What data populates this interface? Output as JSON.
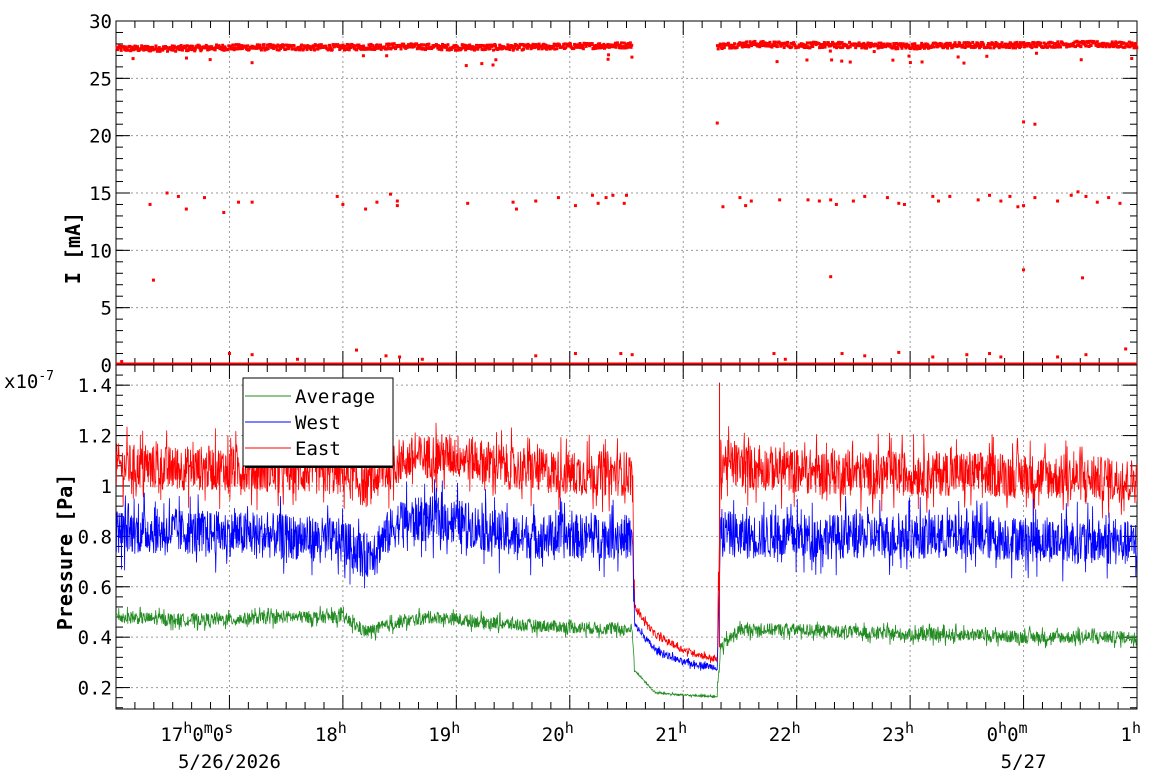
{
  "chart_data": [
    {
      "id": "current",
      "type": "scatter",
      "ylabel": "I [mA]",
      "ylim": [
        0,
        30
      ],
      "yticks": [
        "0",
        "5",
        "10",
        "15",
        "20",
        "25",
        "30"
      ],
      "grid": true,
      "series": [
        {
          "color": "#ff0000",
          "baseline_points": [
            [
              16.0,
              27.6
            ],
            [
              16.5,
              27.6
            ],
            [
              17.0,
              27.7
            ],
            [
              17.5,
              27.7
            ],
            [
              18.0,
              27.7
            ],
            [
              18.5,
              27.8
            ],
            [
              19.0,
              27.7
            ],
            [
              19.5,
              27.7
            ],
            [
              20.0,
              27.8
            ],
            [
              20.55,
              27.9
            ],
            [
              21.3,
              27.8
            ],
            [
              21.6,
              28.0
            ],
            [
              22.0,
              27.9
            ],
            [
              22.5,
              27.9
            ],
            [
              23.0,
              27.8
            ],
            [
              23.5,
              27.9
            ],
            [
              24.0,
              27.9
            ],
            [
              24.5,
              28.0
            ],
            [
              25.0,
              27.9
            ]
          ],
          "gap": [
            20.55,
            21.3
          ],
          "outliers": [
            [
              16.05,
              0.3
            ],
            [
              16.3,
              14.0
            ],
            [
              16.33,
              7.4
            ],
            [
              16.45,
              15.0
            ],
            [
              16.55,
              14.7
            ],
            [
              16.62,
              13.6
            ],
            [
              16.78,
              14.6
            ],
            [
              16.95,
              13.3
            ],
            [
              17.08,
              14.2
            ],
            [
              17.2,
              14.2
            ],
            [
              17.0,
              1.0
            ],
            [
              17.2,
              0.9
            ],
            [
              17.6,
              0.5
            ],
            [
              17.95,
              14.7
            ],
            [
              18.0,
              14.0
            ],
            [
              18.2,
              13.6
            ],
            [
              18.3,
              14.2
            ],
            [
              18.42,
              14.9
            ],
            [
              18.48,
              14.3
            ],
            [
              18.48,
              13.9
            ],
            [
              18.12,
              1.3
            ],
            [
              18.38,
              0.8
            ],
            [
              18.5,
              0.7
            ],
            [
              18.7,
              0.5
            ],
            [
              19.1,
              14.1
            ],
            [
              19.5,
              14.2
            ],
            [
              19.53,
              13.6
            ],
            [
              19.7,
              14.3
            ],
            [
              19.9,
              14.6
            ],
            [
              20.05,
              13.9
            ],
            [
              20.2,
              14.8
            ],
            [
              20.25,
              14.1
            ],
            [
              20.32,
              14.6
            ],
            [
              20.38,
              14.8
            ],
            [
              20.5,
              14.8
            ],
            [
              20.48,
              14.1
            ],
            [
              19.7,
              0.8
            ],
            [
              20.05,
              1.0
            ],
            [
              20.45,
              1.0
            ],
            [
              20.55,
              0.9
            ],
            [
              21.3,
              21.1
            ],
            [
              21.35,
              13.8
            ],
            [
              21.5,
              14.6
            ],
            [
              21.55,
              13.9
            ],
            [
              21.6,
              14.3
            ],
            [
              21.85,
              14.4
            ],
            [
              22.1,
              14.4
            ],
            [
              22.2,
              14.3
            ],
            [
              22.3,
              14.4
            ],
            [
              22.35,
              14.0
            ],
            [
              22.5,
              14.3
            ],
            [
              22.6,
              14.7
            ],
            [
              22.8,
              14.6
            ],
            [
              22.9,
              14.1
            ],
            [
              22.95,
              14.0
            ],
            [
              23.2,
              14.7
            ],
            [
              23.25,
              14.3
            ],
            [
              23.35,
              14.7
            ],
            [
              23.6,
              14.4
            ],
            [
              23.7,
              14.8
            ],
            [
              23.8,
              14.3
            ],
            [
              23.88,
              14.7
            ],
            [
              23.95,
              13.8
            ],
            [
              24.0,
              13.9
            ],
            [
              24.1,
              14.6
            ],
            [
              24.3,
              14.3
            ],
            [
              24.42,
              14.8
            ],
            [
              24.48,
              15.1
            ],
            [
              24.55,
              14.7
            ],
            [
              24.65,
              14.2
            ],
            [
              24.75,
              14.6
            ],
            [
              24.85,
              14.1
            ],
            [
              22.3,
              7.7
            ],
            [
              24.0,
              8.3
            ],
            [
              24.52,
              7.6
            ],
            [
              24.0,
              21.2
            ],
            [
              24.1,
              21.0
            ],
            [
              21.8,
              1.0
            ],
            [
              21.9,
              0.5
            ],
            [
              22.4,
              1.0
            ],
            [
              22.6,
              0.8
            ],
            [
              22.9,
              1.1
            ],
            [
              23.2,
              0.7
            ],
            [
              23.5,
              0.9
            ],
            [
              23.7,
              1.0
            ],
            [
              23.8,
              0.7
            ],
            [
              24.3,
              0.7
            ],
            [
              24.55,
              0.9
            ],
            [
              24.9,
              1.4
            ]
          ]
        }
      ]
    },
    {
      "id": "pressure",
      "type": "line",
      "ylabel": "Pressure [Pa]",
      "yscale_label": "x10^-7",
      "yscale_base": "x10",
      "yscale_exp": "-7",
      "ylim": [
        0.115,
        1.48
      ],
      "yticks": [
        "0.2",
        "0.4",
        "0.6",
        "0.8",
        "1",
        "1.2",
        "1.4"
      ],
      "grid": true,
      "legend": {
        "position": "top-left",
        "entries": [
          {
            "label": "Average",
            "color": "#228b22"
          },
          {
            "label": "West",
            "color": "#0000ff"
          },
          {
            "label": "East",
            "color": "#ff0000"
          }
        ]
      },
      "series": [
        {
          "name": "East",
          "color": "#ff0000",
          "points": [
            [
              16.0,
              1.08
            ],
            [
              16.5,
              1.07
            ],
            [
              17.0,
              1.07
            ],
            [
              17.5,
              1.06
            ],
            [
              18.0,
              1.05
            ],
            [
              18.2,
              1.0
            ],
            [
              18.5,
              1.1
            ],
            [
              18.8,
              1.12
            ],
            [
              19.0,
              1.12
            ],
            [
              19.5,
              1.07
            ],
            [
              20.0,
              1.05
            ],
            [
              20.55,
              1.05
            ],
            [
              20.57,
              0.52
            ],
            [
              20.75,
              0.41
            ],
            [
              21.0,
              0.35
            ],
            [
              21.3,
              0.31
            ],
            [
              21.33,
              1.1
            ],
            [
              21.5,
              1.08
            ],
            [
              22.0,
              1.06
            ],
            [
              22.5,
              1.05
            ],
            [
              23.0,
              1.05
            ],
            [
              23.5,
              1.05
            ],
            [
              24.0,
              1.04
            ],
            [
              24.5,
              1.03
            ],
            [
              25.0,
              1.02
            ]
          ],
          "noise": 0.09
        },
        {
          "name": "West",
          "color": "#0000ff",
          "points": [
            [
              16.0,
              0.82
            ],
            [
              16.5,
              0.82
            ],
            [
              17.0,
              0.81
            ],
            [
              17.5,
              0.8
            ],
            [
              18.0,
              0.78
            ],
            [
              18.2,
              0.72
            ],
            [
              18.5,
              0.86
            ],
            [
              18.8,
              0.87
            ],
            [
              19.0,
              0.86
            ],
            [
              19.5,
              0.8
            ],
            [
              20.0,
              0.8
            ],
            [
              20.55,
              0.8
            ],
            [
              20.57,
              0.45
            ],
            [
              20.75,
              0.35
            ],
            [
              21.0,
              0.3
            ],
            [
              21.3,
              0.28
            ],
            [
              21.33,
              0.82
            ],
            [
              21.5,
              0.8
            ],
            [
              22.0,
              0.8
            ],
            [
              22.5,
              0.8
            ],
            [
              23.0,
              0.8
            ],
            [
              23.5,
              0.8
            ],
            [
              24.0,
              0.79
            ],
            [
              24.5,
              0.78
            ],
            [
              25.0,
              0.77
            ]
          ],
          "noise": 0.09
        },
        {
          "name": "Average",
          "color": "#228b22",
          "points": [
            [
              16.0,
              0.48
            ],
            [
              16.5,
              0.47
            ],
            [
              17.0,
              0.47
            ],
            [
              17.5,
              0.48
            ],
            [
              18.0,
              0.48
            ],
            [
              18.2,
              0.42
            ],
            [
              18.5,
              0.46
            ],
            [
              18.8,
              0.48
            ],
            [
              19.0,
              0.47
            ],
            [
              19.5,
              0.45
            ],
            [
              20.0,
              0.44
            ],
            [
              20.55,
              0.43
            ],
            [
              20.57,
              0.27
            ],
            [
              20.75,
              0.18
            ],
            [
              21.0,
              0.17
            ],
            [
              21.3,
              0.165
            ],
            [
              21.33,
              0.36
            ],
            [
              21.5,
              0.43
            ],
            [
              22.0,
              0.43
            ],
            [
              22.5,
              0.42
            ],
            [
              23.0,
              0.41
            ],
            [
              23.5,
              0.41
            ],
            [
              24.0,
              0.4
            ],
            [
              24.5,
              0.4
            ],
            [
              25.0,
              0.4
            ]
          ],
          "noise": 0.025
        }
      ]
    }
  ],
  "time_axis": {
    "range_hours": [
      16.0,
      25.0
    ],
    "ticks": [
      {
        "h": 17,
        "main": "17",
        "sup": "h",
        "rest": [
          "0",
          "m",
          "0",
          "s"
        ],
        "sub": "5/26/2026"
      },
      {
        "h": 18,
        "main": "18",
        "sup": "h"
      },
      {
        "h": 19,
        "main": "19",
        "sup": "h"
      },
      {
        "h": 20,
        "main": "20",
        "sup": "h"
      },
      {
        "h": 21,
        "main": "21",
        "sup": "h"
      },
      {
        "h": 22,
        "main": "22",
        "sup": "h"
      },
      {
        "h": 23,
        "main": "23",
        "sup": "h"
      },
      {
        "h": 24,
        "main": "0",
        "sup": "h",
        "rest": [
          "0",
          "m"
        ],
        "sub": "5/27"
      },
      {
        "h": 25,
        "main": "1",
        "sup": "h"
      }
    ]
  }
}
